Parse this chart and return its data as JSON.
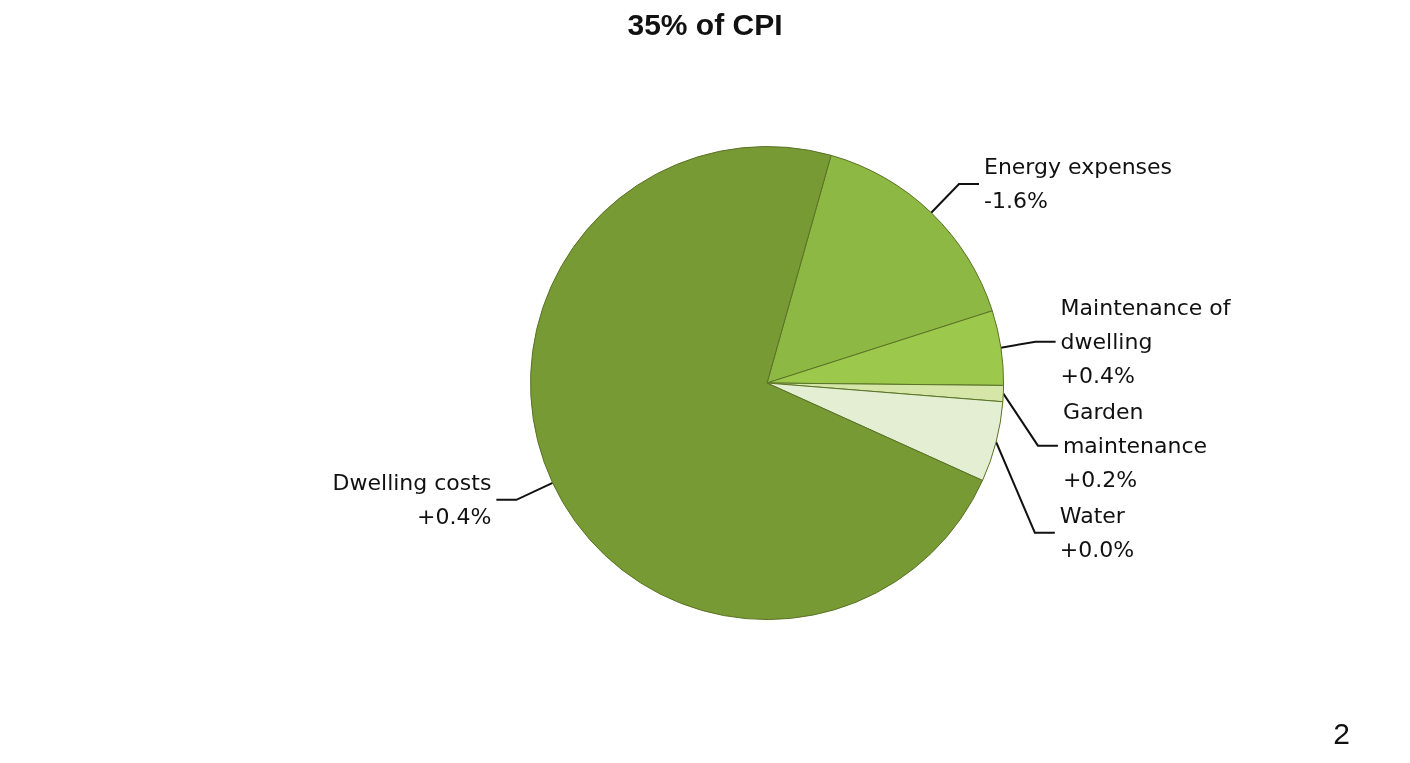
{
  "chart_data": {
    "type": "pie",
    "title": "35% of CPI",
    "categories": [
      "Energy expenses\n-1.6%",
      "Maintenance of dwelling\n+0.4%",
      "Garden maintenance\n+0.2%",
      "Water\n+0.0%",
      "Dwelling costs\n+0.4%"
    ],
    "values": [
      15.7,
      5.1,
      1.1,
      5.5,
      72.6
    ],
    "colors": [
      "#8db843",
      "#9cc94c",
      "#d6e6a8",
      "#e4eed2",
      "#779a34"
    ],
    "annotations": [
      "2"
    ]
  }
}
